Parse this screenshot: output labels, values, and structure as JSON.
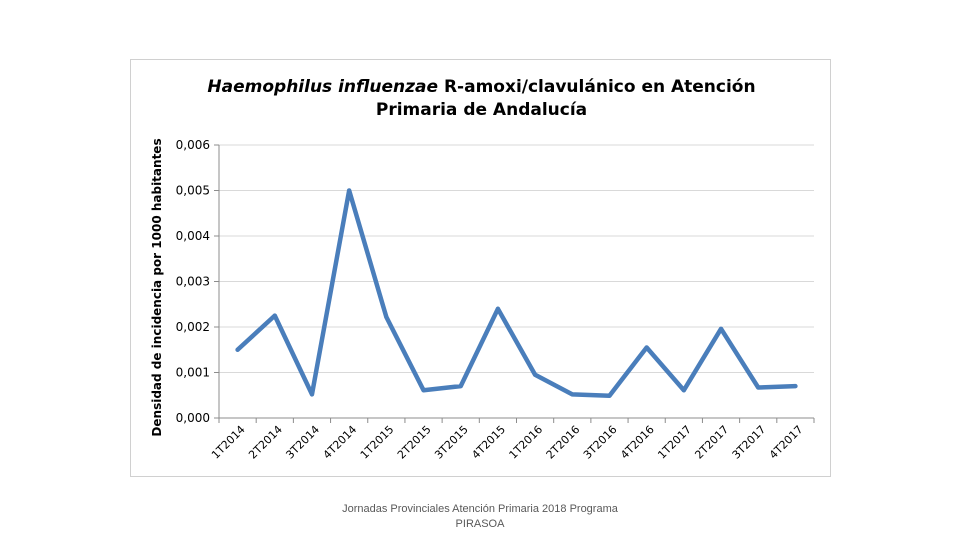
{
  "chart_data": {
    "type": "line",
    "title_italic": "Haemophilus influenzae",
    "title_rest_line1": " R-amoxi/clavulánico en Atención",
    "title_line2": "Primaria de Andalucía",
    "xlabel": "",
    "ylabel": "Densidad de incidencia por 1000 habitantes",
    "ylim": [
      0,
      0.006
    ],
    "yticks": [
      "0,000",
      "0,001",
      "0,002",
      "0,003",
      "0,004",
      "0,005",
      "0,006"
    ],
    "categories": [
      "1T2014",
      "2T2014",
      "3T2014",
      "4T2014",
      "1T2015",
      "2T2015",
      "3T2015",
      "4T2015",
      "1T2016",
      "2T2016",
      "3T2016",
      "4T2016",
      "1T2017",
      "2T2017",
      "3T2017",
      "4T2017"
    ],
    "series": [
      {
        "name": "Haemophilus influenzae R-amoxi/clavulánico",
        "color": "#4a7ebb",
        "values": [
          0.0015,
          0.00225,
          0.00052,
          0.005,
          0.00222,
          0.00061,
          0.0007,
          0.0024,
          0.00095,
          0.00052,
          0.00049,
          0.00155,
          0.00061,
          0.00196,
          0.00067,
          0.0007
        ]
      }
    ],
    "grid": true,
    "gridColor": "#d9d9d9",
    "axisColor": "#8c8c8c"
  },
  "footer": {
    "line1": "Jornadas Provinciales Atención Primaria 2018  Programa",
    "line2": "PIRASOA"
  }
}
